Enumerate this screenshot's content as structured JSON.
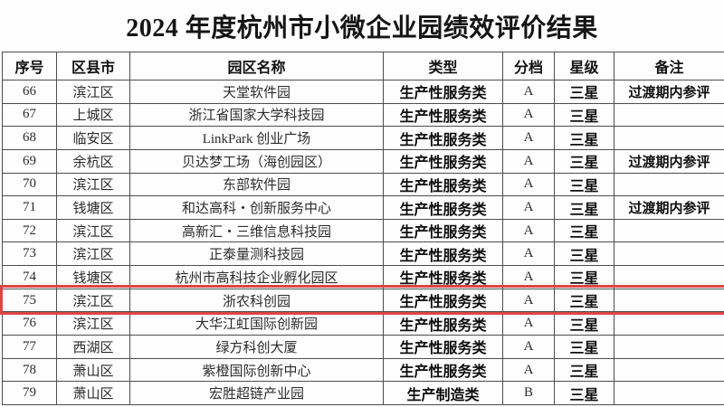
{
  "title": "2024 年度杭州市小微企业园绩效评价结果",
  "table": {
    "headers": [
      "序号",
      "区县市",
      "园区名称",
      "类型",
      "分档",
      "星级",
      "备注"
    ],
    "column_keys": [
      "index",
      "district",
      "park-name",
      "type",
      "tier",
      "star-rating",
      "remark"
    ],
    "rows": [
      [
        "66",
        "滨江区",
        "天堂软件园",
        "生产性服务类",
        "A",
        "三星",
        "过渡期内参评"
      ],
      [
        "67",
        "上城区",
        "浙江省国家大学科技园",
        "生产性服务类",
        "A",
        "三星",
        ""
      ],
      [
        "68",
        "临安区",
        "LinkPark 创业广场",
        "生产性服务类",
        "A",
        "三星",
        ""
      ],
      [
        "69",
        "余杭区",
        "贝达梦工场（海创园区）",
        "生产性服务类",
        "A",
        "三星",
        "过渡期内参评"
      ],
      [
        "70",
        "滨江区",
        "东部软件园",
        "生产性服务类",
        "A",
        "三星",
        ""
      ],
      [
        "71",
        "钱塘区",
        "和达高科・创新服务中心",
        "生产性服务类",
        "A",
        "三星",
        "过渡期内参评"
      ],
      [
        "72",
        "滨江区",
        "高新汇・三维信息科技园",
        "生产性服务类",
        "A",
        "三星",
        ""
      ],
      [
        "73",
        "滨江区",
        "正泰量测科技园",
        "生产性服务类",
        "A",
        "三星",
        ""
      ],
      [
        "74",
        "钱塘区",
        "杭州市高科技企业孵化园区",
        "生产性服务类",
        "A",
        "三星",
        ""
      ],
      [
        "75",
        "滨江区",
        "浙农科创园",
        "生产性服务类",
        "A",
        "三星",
        ""
      ],
      [
        "76",
        "滨江区",
        "大华江虹国际创新园",
        "生产性服务类",
        "A",
        "三星",
        ""
      ],
      [
        "77",
        "西湖区",
        "绿方科创大厦",
        "生产性服务类",
        "A",
        "三星",
        ""
      ],
      [
        "78",
        "萧山区",
        "紫橙国际创新中心",
        "生产性服务类",
        "A",
        "三星",
        ""
      ],
      [
        "79",
        "萧山区",
        "宏胜超链产业园",
        "生产制造类",
        "B",
        "三星",
        ""
      ]
    ],
    "highlight": {
      "row_index": 9,
      "color": "#dd4545"
    }
  }
}
